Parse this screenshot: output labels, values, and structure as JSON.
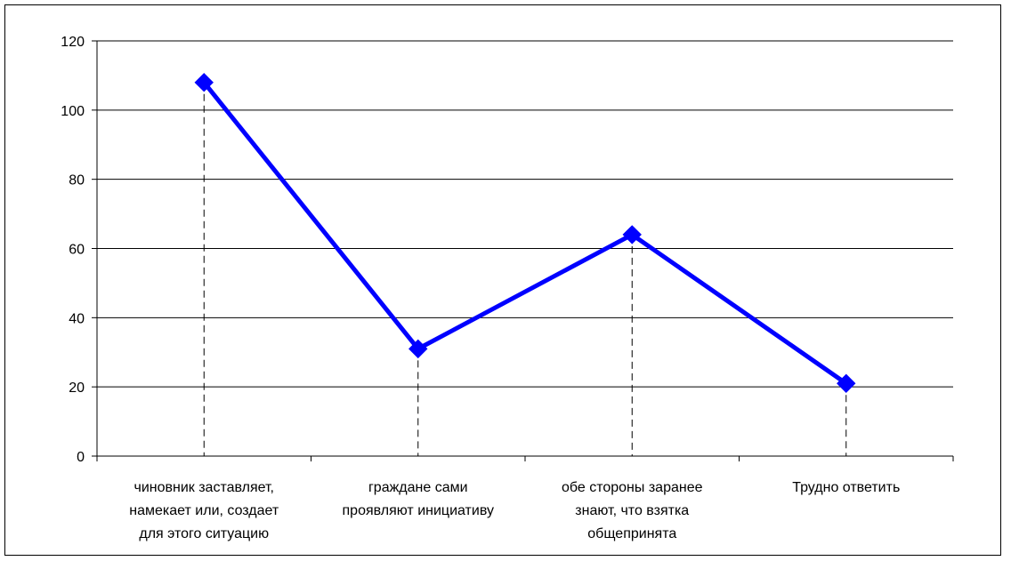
{
  "chart_data": {
    "type": "line",
    "categories": [
      [
        "чиновник заставляет,",
        "намекает или, создает",
        "для этого ситуацию"
      ],
      [
        "граждане сами",
        "проявляют инициативу"
      ],
      [
        "обе стороны заранее",
        "знают, что взятка",
        "общепринята"
      ],
      [
        "Трудно ответить"
      ]
    ],
    "series": [
      {
        "values": [
          108,
          31,
          64,
          21
        ]
      }
    ],
    "ylim": [
      0,
      120
    ],
    "yticks": [
      0,
      20,
      40,
      60,
      80,
      100,
      120
    ],
    "grid": true,
    "drop_lines": true,
    "marker": "diamond",
    "colors": {
      "series": "#0000ff",
      "grid": "#000000",
      "axis": "#000000",
      "text": "#000000"
    }
  }
}
